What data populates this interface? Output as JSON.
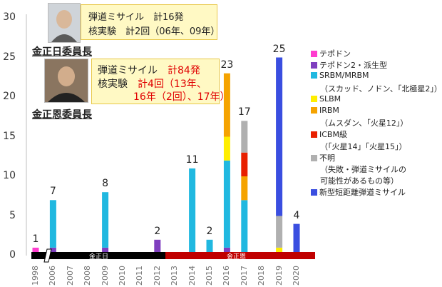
{
  "chart_data": {
    "type": "bar",
    "stacked": true,
    "categories": [
      "1998",
      "2006",
      "2007",
      "2008",
      "2009",
      "2010",
      "2011",
      "2012",
      "2013",
      "2014",
      "2015",
      "2016",
      "2017",
      "2018",
      "2019",
      "2020"
    ],
    "ylim": [
      0,
      30
    ],
    "yticks": [
      0,
      5,
      10,
      15,
      20,
      25,
      30
    ],
    "grid": false,
    "legend_position": "right",
    "series": [
      {
        "name": "テポドン",
        "color": "#ff3ccf",
        "values": [
          1,
          0,
          0,
          0,
          0,
          0,
          0,
          0,
          0,
          0,
          0,
          0,
          0,
          0,
          0,
          0
        ]
      },
      {
        "name": "テポドン2・派生型",
        "color": "#7f3fbf",
        "values": [
          0,
          1,
          0,
          0,
          1,
          0,
          0,
          2,
          0,
          0,
          0,
          1,
          0,
          0,
          0,
          0
        ]
      },
      {
        "name": "SRBM/MRBM",
        "color": "#20b8e0",
        "values": [
          0,
          6,
          0,
          0,
          7,
          0,
          0,
          0,
          0,
          11,
          2,
          11,
          7,
          0,
          0,
          0
        ]
      },
      {
        "name": "SLBM",
        "color": "#ffee00",
        "values": [
          0,
          0,
          0,
          0,
          0,
          0,
          0,
          0,
          0,
          0,
          0,
          3,
          0,
          0,
          1,
          0
        ]
      },
      {
        "name": "IRBM",
        "color": "#f5a300",
        "values": [
          0,
          0,
          0,
          0,
          0,
          0,
          0,
          0,
          0,
          0,
          0,
          8,
          3,
          0,
          0,
          0
        ]
      },
      {
        "name": "ICBM級",
        "color": "#e82000",
        "values": [
          0,
          0,
          0,
          0,
          0,
          0,
          0,
          0,
          0,
          0,
          0,
          0,
          3,
          0,
          0,
          0
        ]
      },
      {
        "name": "不明",
        "color": "#b0b0b0",
        "values": [
          0,
          0,
          0,
          0,
          0,
          0,
          0,
          0,
          0,
          0,
          0,
          0,
          4,
          0,
          4,
          0
        ]
      },
      {
        "name": "新型短距離弾道ミサイル",
        "color": "#3a4ee0",
        "values": [
          0,
          0,
          0,
          0,
          0,
          0,
          0,
          0,
          0,
          0,
          0,
          0,
          0,
          0,
          20,
          4
        ]
      }
    ],
    "totals": [
      "1",
      "7",
      "",
      "",
      "8",
      "",
      "",
      "2",
      "",
      "11",
      "2",
      "23",
      "17",
      "",
      "25",
      "4"
    ],
    "legend_notes": [
      "（スカッド、ノドン、「北極星2」）",
      "（ムスダン、「火星12」）",
      "（「火星14」「火星15」）",
      "（失敗・弾道ミサイルの",
      "可能性があるもの等）"
    ],
    "eras": [
      {
        "label": "金正日",
        "color": "#000000"
      },
      {
        "label": "金正恩",
        "color": "#c00000"
      }
    ],
    "annotations": {
      "kim_jong_il": {
        "leader": "金正日委員長",
        "line1": "弾道ミサイル　計16発",
        "line2": "核実験　計2回（06年、09年）"
      },
      "kim_jong_un": {
        "leader": "金正恩委員長",
        "line1_label": "弾道ミサイル　",
        "line1_value": "計84発",
        "line2_label": "核実験　",
        "line2_value": "計4回（13年、",
        "line3_value": "16年（2回）、17年）"
      }
    }
  }
}
